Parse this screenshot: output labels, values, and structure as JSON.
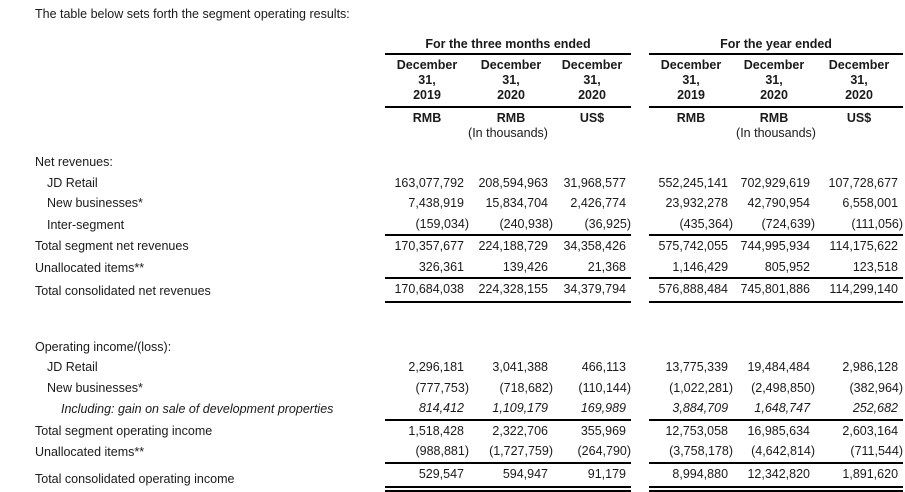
{
  "intro": "The table below sets forth the segment operating results:",
  "table": {
    "groups": [
      {
        "title": "For the three months ended",
        "columns": [
          {
            "date": "December\n31,\n2019",
            "currency": "RMB"
          },
          {
            "date": "December\n31,\n2020",
            "currency": "RMB"
          },
          {
            "date": "December\n31,\n2020",
            "currency": "US$"
          }
        ],
        "unit_note": "(In thousands)"
      },
      {
        "title": "For the year ended",
        "columns": [
          {
            "date": "December\n31,\n2019",
            "currency": "RMB"
          },
          {
            "date": "December\n31,\n2020",
            "currency": "RMB"
          },
          {
            "date": "December\n31,\n2020",
            "currency": "US$"
          }
        ],
        "unit_note": "(In thousands)"
      }
    ],
    "rows": [
      {
        "type": "section",
        "label": "Net revenues:",
        "indent": 0
      },
      {
        "type": "data",
        "label": "JD Retail",
        "indent": 1,
        "values": [
          "163,077,792",
          "208,594,963",
          "31,968,577",
          "552,245,141",
          "702,929,619",
          "107,728,677"
        ]
      },
      {
        "type": "data",
        "label": "New businesses*",
        "indent": 1,
        "values": [
          "7,438,919",
          "15,834,704",
          "2,426,774",
          "23,932,278",
          "42,790,954",
          "6,558,001"
        ]
      },
      {
        "type": "data",
        "label": "Inter-segment",
        "indent": 1,
        "values": [
          "(159,034)",
          "(240,938)",
          "(36,925)",
          "(435,364)",
          "(724,639)",
          "(111,056)"
        ]
      },
      {
        "type": "data",
        "label": "Total segment net revenues",
        "indent": 0,
        "rule_top": true,
        "values": [
          "170,357,677",
          "224,188,729",
          "34,358,426",
          "575,742,055",
          "744,995,934",
          "114,175,622"
        ]
      },
      {
        "type": "data",
        "label": "Unallocated items**",
        "indent": 0,
        "values": [
          "326,361",
          "139,426",
          "21,368",
          "1,146,429",
          "805,952",
          "123,518"
        ]
      },
      {
        "type": "data",
        "label": "Total consolidated net revenues",
        "indent": 0,
        "rule_top": true,
        "rule_bottom": "single",
        "values": [
          "170,684,038",
          "224,328,155",
          "34,379,794",
          "576,888,484",
          "745,801,886",
          "114,299,140"
        ]
      },
      {
        "type": "spacer"
      },
      {
        "type": "section",
        "label": "Operating income/(loss):",
        "indent": 0
      },
      {
        "type": "data",
        "label": "JD Retail",
        "indent": 1,
        "values": [
          "2,296,181",
          "3,041,388",
          "466,113",
          "13,775,339",
          "19,484,484",
          "2,986,128"
        ]
      },
      {
        "type": "data",
        "label": "New businesses*",
        "indent": 1,
        "values": [
          "(777,753)",
          "(718,682)",
          "(110,144)",
          "(1,022,281)",
          "(2,498,850)",
          "(382,964)"
        ]
      },
      {
        "type": "data",
        "label": "Including: gain on sale of development properties",
        "indent": 2,
        "italic": true,
        "values": [
          "814,412",
          "1,109,179",
          "169,989",
          "3,884,709",
          "1,648,747",
          "252,682"
        ]
      },
      {
        "type": "data",
        "label": "Total segment operating income",
        "indent": 0,
        "rule_top": true,
        "values": [
          "1,518,428",
          "2,322,706",
          "355,969",
          "12,753,058",
          "16,985,634",
          "2,603,164"
        ]
      },
      {
        "type": "data",
        "label": "Unallocated items**",
        "indent": 0,
        "values": [
          "(988,881)",
          "(1,727,759)",
          "(264,790)",
          "(3,758,178)",
          "(4,642,814)",
          "(711,544)"
        ]
      },
      {
        "type": "data",
        "label": "Total consolidated operating income",
        "indent": 0,
        "rule_top": true,
        "rule_bottom": "double",
        "values": [
          "529,547",
          "594,947",
          "91,179",
          "8,994,880",
          "12,342,820",
          "1,891,620"
        ]
      }
    ]
  },
  "colors": {
    "text": "#1a1a1a",
    "rule": "#000000",
    "background": "#ffffff"
  }
}
